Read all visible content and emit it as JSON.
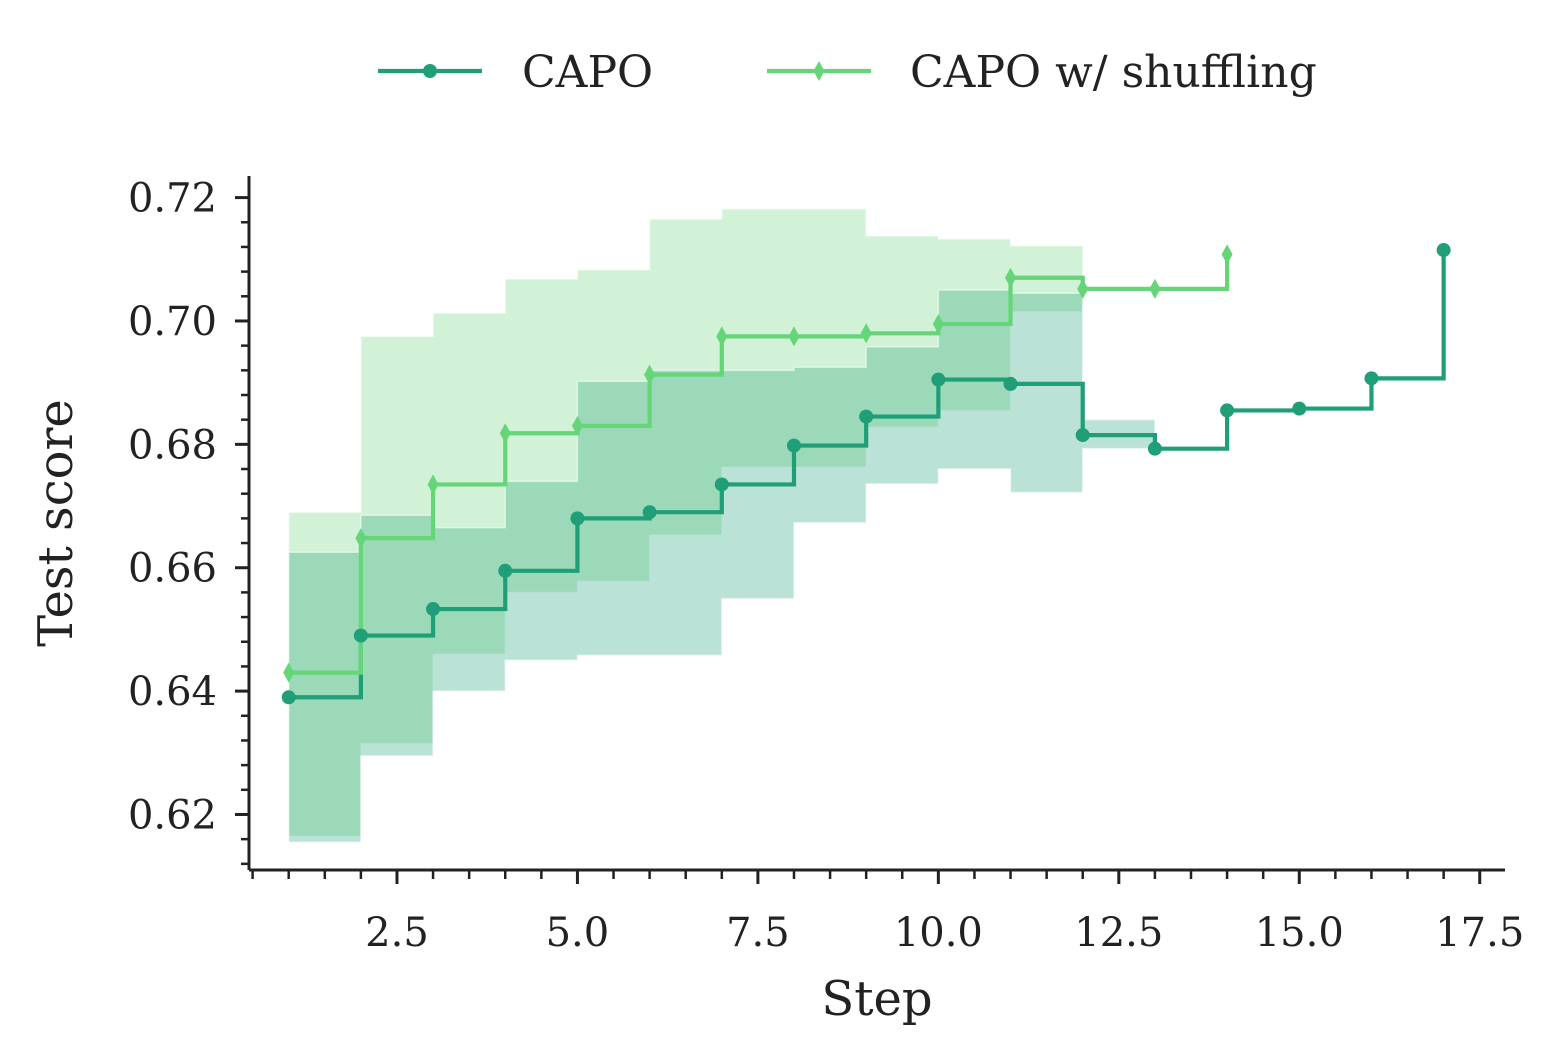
{
  "chart_data": {
    "type": "line",
    "title": "",
    "xlabel": "Step",
    "ylabel": "Test score",
    "xlim": [
      0.45,
      17.85
    ],
    "ylim": [
      0.611,
      0.7235
    ],
    "x_ticks": [
      2.5,
      5.0,
      7.5,
      10.0,
      12.5,
      15.0,
      17.5
    ],
    "x_tick_labels": [
      "2.5",
      "5.0",
      "7.5",
      "10.0",
      "12.5",
      "15.0",
      "17.5"
    ],
    "y_ticks": [
      0.62,
      0.64,
      0.66,
      0.68,
      0.7,
      0.72
    ],
    "y_tick_labels": [
      "0.62",
      "0.64",
      "0.66",
      "0.68",
      "0.70",
      "0.72"
    ],
    "grid": false,
    "legend_position": "top-center",
    "step_style": "post",
    "series": [
      {
        "name": "CAPO",
        "color": "#1f9e78",
        "marker": "circle",
        "x": [
          1,
          2,
          3,
          4,
          5,
          6,
          7,
          8,
          9,
          10,
          11,
          12,
          13,
          14,
          15,
          16,
          17
        ],
        "y": [
          0.639,
          0.649,
          0.6533,
          0.6595,
          0.668,
          0.669,
          0.6735,
          0.6798,
          0.6845,
          0.6905,
          0.6898,
          0.6815,
          0.6793,
          0.6855,
          0.6858,
          0.6907,
          0.7115
        ],
        "band_lower": [
          0.6155,
          0.6295,
          0.64,
          0.645,
          0.6458,
          0.6458,
          0.655,
          0.6673,
          0.6736,
          0.676,
          0.6722,
          0.6793
        ],
        "band_upper": [
          0.6625,
          0.6685,
          0.6665,
          0.674,
          0.6902,
          0.692,
          0.692,
          0.6925,
          0.6958,
          0.705,
          0.7045,
          0.684
        ]
      },
      {
        "name": "CAPO w/ shuffling",
        "color": "#66d478",
        "marker": "diamond",
        "x": [
          1,
          2,
          3,
          4,
          5,
          6,
          7,
          8,
          9,
          10,
          11,
          12,
          13,
          14
        ],
        "y": [
          0.643,
          0.6648,
          0.6735,
          0.6818,
          0.683,
          0.6913,
          0.6975,
          0.6975,
          0.698,
          0.6995,
          0.707,
          0.7052,
          0.7052,
          0.7108
        ],
        "band_lower": [
          0.6165,
          0.6315,
          0.646,
          0.656,
          0.6578,
          0.6653,
          0.6763,
          0.6763,
          0.6828,
          0.6855,
          0.7015
        ],
        "band_upper": [
          0.669,
          0.6975,
          0.7013,
          0.7068,
          0.7083,
          0.7165,
          0.7182,
          0.7182,
          0.7138,
          0.7133,
          0.7122
        ]
      }
    ]
  }
}
